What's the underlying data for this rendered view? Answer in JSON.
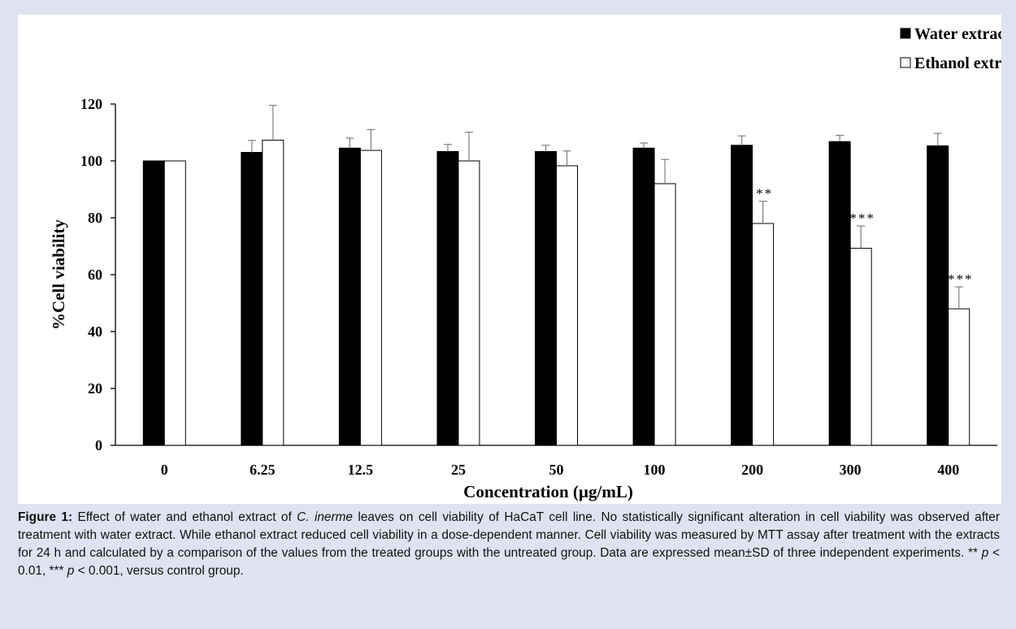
{
  "chart_data": {
    "type": "bar",
    "categories": [
      "0",
      "6.25",
      "12.5",
      "25",
      "50",
      "100",
      "200",
      "300",
      "400"
    ],
    "series": [
      {
        "name": "Water  extract",
        "values": [
          100,
          103,
          104.5,
          103.3,
          103.3,
          104.5,
          105.5,
          106.8,
          105.3
        ],
        "errors": [
          0,
          4.2,
          3.5,
          2.5,
          2.2,
          1.8,
          3.3,
          2.2,
          4.4
        ],
        "fill": "#000000"
      },
      {
        "name": "Ethanol extract",
        "values": [
          100,
          107.3,
          103.7,
          100,
          98.3,
          92,
          78,
          69.3,
          48
        ],
        "errors": [
          0,
          12.2,
          7.3,
          10.1,
          5.2,
          8.5,
          7.8,
          7.8,
          7.7
        ],
        "fill": "#ffffff",
        "significance": [
          "",
          "",
          "",
          "",
          "",
          "",
          "**",
          "***",
          "***"
        ]
      }
    ],
    "xlabel": "Concentration (µg/mL)",
    "ylabel": "%Cell viability",
    "ylim": [
      0,
      120
    ],
    "yticks": [
      0,
      20,
      40,
      60,
      80,
      100,
      120
    ],
    "grid": false,
    "legend_position": "top-right"
  },
  "caption": {
    "label": "Figure 1:",
    "before_species": " Effect of water and ethanol extract of ",
    "species": "C. inerme",
    "after_species": " leaves on cell viability of HaCaT cell line. No statistically significant alteration in cell viability was observed after treatment with water extract. While ethanol extract reduced cell viability in a dose-dependent manner. Cell viability was measured by MTT assay after treatment with the extracts for 24 h and calculated by a comparison of the values from the treated groups with the untreated group. Data are expressed mean±SD of three independent experiments. ** ",
    "p1": "p",
    "mid1": " < 0.01, *** ",
    "p2": "p",
    "end": " < 0.001,  versus control group."
  },
  "colors": {
    "panel_background": "#dfe3f1",
    "chart_background": "#ffffff",
    "bar_water": "#000000",
    "bar_ethanol": "#ffffff",
    "error_bar": "#808080"
  }
}
